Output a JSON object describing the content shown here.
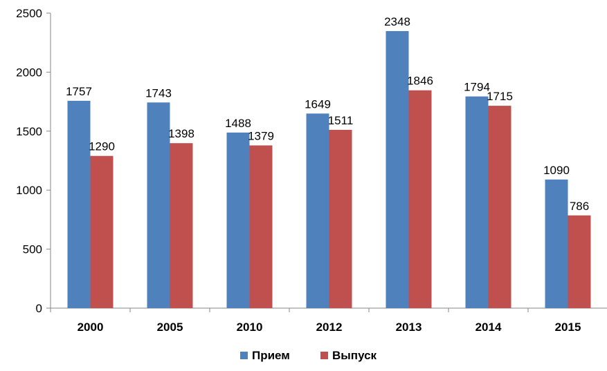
{
  "chart_data": {
    "type": "bar",
    "categories": [
      "2000",
      "2005",
      "2010",
      "2012",
      "2013",
      "2014",
      "2015"
    ],
    "series": [
      {
        "name": "Прием",
        "color": "#4f81bd",
        "values": [
          1757,
          1743,
          1488,
          1649,
          2348,
          1794,
          1090
        ]
      },
      {
        "name": "Выпуск",
        "color": "#c0504d",
        "values": [
          1290,
          1398,
          1379,
          1511,
          1846,
          1715,
          786
        ]
      }
    ],
    "y_ticks": [
      "0",
      "500",
      "1000",
      "1500",
      "2000",
      "2500"
    ],
    "ylim": [
      0,
      2500
    ],
    "grid": false,
    "legend_position": "bottom",
    "data_labels": true
  }
}
